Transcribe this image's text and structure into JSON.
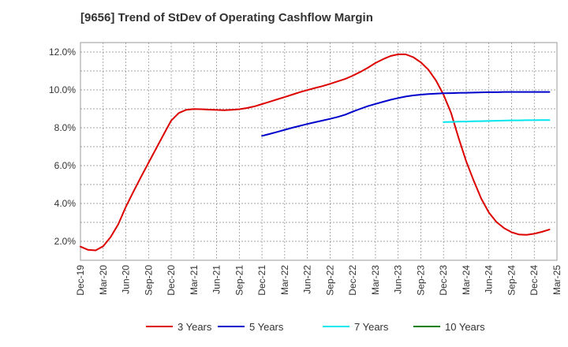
{
  "chart_data": {
    "type": "line",
    "title": "[9656]  Trend of StDev of Operating Cashflow Margin",
    "x_tick_labels": [
      "Dec-19",
      "Mar-20",
      "Jun-20",
      "Sep-20",
      "Dec-20",
      "Mar-21",
      "Jun-21",
      "Sep-21",
      "Dec-21",
      "Mar-22",
      "Jun-22",
      "Sep-22",
      "Dec-22",
      "Mar-23",
      "Jun-23",
      "Sep-23",
      "Dec-23",
      "Mar-24",
      "Jun-24",
      "Sep-24",
      "Dec-24",
      "Mar-25"
    ],
    "y_tick_labels": [
      "2.0%",
      "4.0%",
      "6.0%",
      "8.0%",
      "10.0%",
      "12.0%"
    ],
    "ylim": [
      1.0,
      12.5
    ],
    "grid": true,
    "legend_position": "bottom",
    "series": [
      {
        "name": "3 Years",
        "color": "#dd0000",
        "start_month": 0,
        "values": [
          1.72,
          1.55,
          1.52,
          1.74,
          2.23,
          2.9,
          3.82,
          4.62,
          5.4,
          6.15,
          6.9,
          7.65,
          8.38,
          8.78,
          8.95,
          8.99,
          8.98,
          8.96,
          8.94,
          8.93,
          8.95,
          8.98,
          9.04,
          9.13,
          9.25,
          9.37,
          9.5,
          9.62,
          9.75,
          9.88,
          9.99,
          10.1,
          10.2,
          10.32,
          10.45,
          10.58,
          10.75,
          10.95,
          11.17,
          11.42,
          11.62,
          11.79,
          11.88,
          11.88,
          11.73,
          11.46,
          11.07,
          10.5,
          9.75,
          8.78,
          7.45,
          6.22,
          5.2,
          4.25,
          3.52,
          3.02,
          2.7,
          2.48,
          2.36,
          2.34,
          2.4,
          2.5,
          2.62
        ]
      },
      {
        "name": "5 Years",
        "color": "#0000cc",
        "start_month": 24,
        "values": [
          7.57,
          7.67,
          7.78,
          7.89,
          8.0,
          8.1,
          8.2,
          8.29,
          8.38,
          8.47,
          8.57,
          8.69,
          8.85,
          9.0,
          9.14,
          9.26,
          9.37,
          9.48,
          9.57,
          9.65,
          9.71,
          9.75,
          9.78,
          9.8,
          9.82,
          9.83,
          9.84,
          9.85,
          9.86,
          9.87,
          9.88,
          9.88,
          9.89,
          9.89,
          9.89,
          9.89,
          9.89,
          9.89,
          9.89
        ]
      },
      {
        "name": "7 Years",
        "color": "#00e5ee",
        "start_month": 48,
        "values": [
          8.3,
          8.31,
          8.32,
          8.33,
          8.34,
          8.35,
          8.36,
          8.37,
          8.38,
          8.39,
          8.39,
          8.4,
          8.4,
          8.41,
          8.41
        ]
      },
      {
        "name": "10 Years",
        "color": "#008000",
        "start_month": 48,
        "values": []
      }
    ]
  }
}
